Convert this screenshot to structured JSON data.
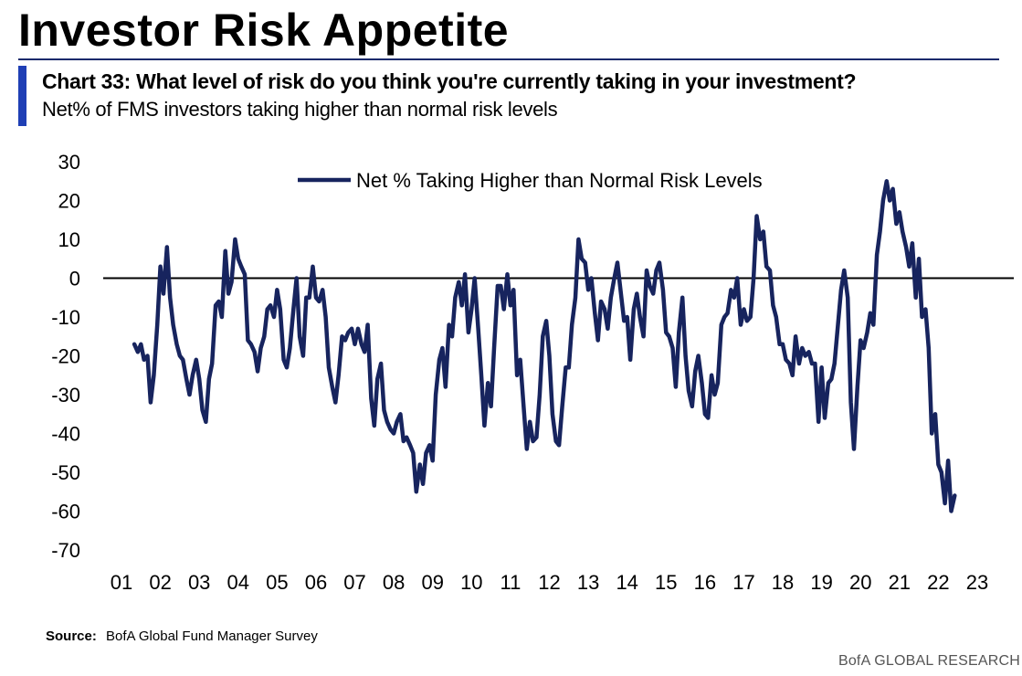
{
  "header": {
    "title": "Investor Risk Appetite",
    "chart_heading": "Chart 33: What level of risk do you think you're currently taking in your investment?",
    "chart_subheading": "Net% of FMS investors taking higher than normal risk levels"
  },
  "footer": {
    "source_label": "Source:",
    "source_text": "BofA Global Fund Manager Survey",
    "brand": "BofA GLOBAL RESEARCH"
  },
  "colors": {
    "series": "#17245e",
    "accent": "#1f3fb5",
    "zero_line": "#000000"
  },
  "chart_data": {
    "type": "line",
    "title": "Chart 33: What level of risk do you think you're currently taking in your investment?",
    "subtitle": "Net% of FMS investors taking higher than normal risk levels",
    "xlabel": "",
    "ylabel": "",
    "ylim": [
      -70,
      30
    ],
    "xlim": [
      2001,
      2023
    ],
    "yticks": [
      30,
      20,
      10,
      0,
      -10,
      -20,
      -30,
      -40,
      -50,
      -60,
      -70
    ],
    "xtick_values": [
      2001,
      2002,
      2003,
      2004,
      2005,
      2006,
      2007,
      2008,
      2009,
      2010,
      2011,
      2012,
      2013,
      2014,
      2015,
      2016,
      2017,
      2018,
      2019,
      2020,
      2021,
      2022,
      2023
    ],
    "xtick_labels": [
      "01",
      "02",
      "03",
      "04",
      "05",
      "06",
      "07",
      "08",
      "09",
      "10",
      "11",
      "12",
      "13",
      "14",
      "15",
      "16",
      "17",
      "18",
      "19",
      "20",
      "21",
      "22",
      "23"
    ],
    "grid": false,
    "legend_position": "top-center",
    "series": [
      {
        "name": "Net % Taking Higher than Normal Risk Levels",
        "points": [
          [
            2001.33,
            -17
          ],
          [
            2001.42,
            -19
          ],
          [
            2001.5,
            -17
          ],
          [
            2001.58,
            -21
          ],
          [
            2001.67,
            -20
          ],
          [
            2001.75,
            -32
          ],
          [
            2001.83,
            -25
          ],
          [
            2001.92,
            -12
          ],
          [
            2002.0,
            3
          ],
          [
            2002.08,
            -4
          ],
          [
            2002.17,
            8
          ],
          [
            2002.25,
            -5
          ],
          [
            2002.33,
            -12
          ],
          [
            2002.42,
            -17
          ],
          [
            2002.5,
            -20
          ],
          [
            2002.58,
            -21
          ],
          [
            2002.67,
            -26
          ],
          [
            2002.75,
            -30
          ],
          [
            2002.83,
            -25
          ],
          [
            2002.92,
            -21
          ],
          [
            2003.0,
            -26
          ],
          [
            2003.08,
            -34
          ],
          [
            2003.17,
            -37
          ],
          [
            2003.25,
            -26
          ],
          [
            2003.33,
            -22
          ],
          [
            2003.42,
            -7
          ],
          [
            2003.5,
            -6
          ],
          [
            2003.58,
            -10
          ],
          [
            2003.67,
            7
          ],
          [
            2003.75,
            -4
          ],
          [
            2003.83,
            -1
          ],
          [
            2003.92,
            10
          ],
          [
            2004.0,
            5
          ],
          [
            2004.08,
            3
          ],
          [
            2004.17,
            1
          ],
          [
            2004.25,
            -16
          ],
          [
            2004.33,
            -17
          ],
          [
            2004.42,
            -19
          ],
          [
            2004.5,
            -24
          ],
          [
            2004.58,
            -18
          ],
          [
            2004.67,
            -15
          ],
          [
            2004.75,
            -8
          ],
          [
            2004.83,
            -7
          ],
          [
            2004.92,
            -10
          ],
          [
            2005.0,
            -3
          ],
          [
            2005.08,
            -8
          ],
          [
            2005.17,
            -21
          ],
          [
            2005.25,
            -23
          ],
          [
            2005.33,
            -18
          ],
          [
            2005.42,
            -8
          ],
          [
            2005.5,
            0
          ],
          [
            2005.58,
            -15
          ],
          [
            2005.67,
            -20
          ],
          [
            2005.75,
            -5
          ],
          [
            2005.83,
            -5
          ],
          [
            2005.92,
            3
          ],
          [
            2006.0,
            -5
          ],
          [
            2006.08,
            -6
          ],
          [
            2006.17,
            -3
          ],
          [
            2006.25,
            -10
          ],
          [
            2006.33,
            -23
          ],
          [
            2006.42,
            -28
          ],
          [
            2006.5,
            -32
          ],
          [
            2006.58,
            -25
          ],
          [
            2006.67,
            -15
          ],
          [
            2006.75,
            -16
          ],
          [
            2006.83,
            -14
          ],
          [
            2006.92,
            -13
          ],
          [
            2007.0,
            -17
          ],
          [
            2007.08,
            -13
          ],
          [
            2007.17,
            -17
          ],
          [
            2007.25,
            -19
          ],
          [
            2007.33,
            -12
          ],
          [
            2007.42,
            -31
          ],
          [
            2007.5,
            -38
          ],
          [
            2007.58,
            -26
          ],
          [
            2007.67,
            -22
          ],
          [
            2007.75,
            -34
          ],
          [
            2007.83,
            -37
          ],
          [
            2007.92,
            -39
          ],
          [
            2008.0,
            -40
          ],
          [
            2008.08,
            -37
          ],
          [
            2008.17,
            -35
          ],
          [
            2008.25,
            -42
          ],
          [
            2008.33,
            -41
          ],
          [
            2008.42,
            -43
          ],
          [
            2008.5,
            -45
          ],
          [
            2008.58,
            -55
          ],
          [
            2008.67,
            -48
          ],
          [
            2008.75,
            -53
          ],
          [
            2008.83,
            -45
          ],
          [
            2008.92,
            -43
          ],
          [
            2009.0,
            -47
          ],
          [
            2009.08,
            -30
          ],
          [
            2009.17,
            -21
          ],
          [
            2009.25,
            -18
          ],
          [
            2009.33,
            -28
          ],
          [
            2009.42,
            -12
          ],
          [
            2009.5,
            -15
          ],
          [
            2009.58,
            -5
          ],
          [
            2009.67,
            -1
          ],
          [
            2009.75,
            -7
          ],
          [
            2009.83,
            1
          ],
          [
            2009.92,
            -14
          ],
          [
            2010.0,
            -8
          ],
          [
            2010.08,
            0
          ],
          [
            2010.17,
            -13
          ],
          [
            2010.25,
            -25
          ],
          [
            2010.33,
            -38
          ],
          [
            2010.42,
            -27
          ],
          [
            2010.5,
            -33
          ],
          [
            2010.58,
            -18
          ],
          [
            2010.67,
            -2
          ],
          [
            2010.75,
            -2
          ],
          [
            2010.83,
            -8
          ],
          [
            2010.92,
            1
          ],
          [
            2011.0,
            -7
          ],
          [
            2011.08,
            -3
          ],
          [
            2011.17,
            -25
          ],
          [
            2011.25,
            -21
          ],
          [
            2011.33,
            -32
          ],
          [
            2011.42,
            -44
          ],
          [
            2011.5,
            -37
          ],
          [
            2011.58,
            -42
          ],
          [
            2011.67,
            -41
          ],
          [
            2011.75,
            -30
          ],
          [
            2011.83,
            -15
          ],
          [
            2011.92,
            -11
          ],
          [
            2012.0,
            -20
          ],
          [
            2012.08,
            -35
          ],
          [
            2012.17,
            -42
          ],
          [
            2012.25,
            -43
          ],
          [
            2012.33,
            -33
          ],
          [
            2012.42,
            -23
          ],
          [
            2012.5,
            -23
          ],
          [
            2012.58,
            -12
          ],
          [
            2012.67,
            -5
          ],
          [
            2012.75,
            10
          ],
          [
            2012.83,
            5
          ],
          [
            2012.92,
            4
          ],
          [
            2013.0,
            -3
          ],
          [
            2013.08,
            0
          ],
          [
            2013.17,
            -9
          ],
          [
            2013.25,
            -16
          ],
          [
            2013.33,
            -6
          ],
          [
            2013.42,
            -8
          ],
          [
            2013.5,
            -13
          ],
          [
            2013.58,
            -5
          ],
          [
            2013.67,
            0
          ],
          [
            2013.75,
            4
          ],
          [
            2013.83,
            -3
          ],
          [
            2013.92,
            -11
          ],
          [
            2014.0,
            -10
          ],
          [
            2014.08,
            -21
          ],
          [
            2014.17,
            -8
          ],
          [
            2014.25,
            -4
          ],
          [
            2014.33,
            -10
          ],
          [
            2014.42,
            -15
          ],
          [
            2014.5,
            2
          ],
          [
            2014.58,
            -2
          ],
          [
            2014.67,
            -4
          ],
          [
            2014.75,
            2
          ],
          [
            2014.83,
            4
          ],
          [
            2014.92,
            -3
          ],
          [
            2015.0,
            -14
          ],
          [
            2015.08,
            -15
          ],
          [
            2015.17,
            -18
          ],
          [
            2015.25,
            -28
          ],
          [
            2015.33,
            -14
          ],
          [
            2015.42,
            -5
          ],
          [
            2015.5,
            -20
          ],
          [
            2015.58,
            -29
          ],
          [
            2015.67,
            -33
          ],
          [
            2015.75,
            -24
          ],
          [
            2015.83,
            -20
          ],
          [
            2015.92,
            -27
          ],
          [
            2016.0,
            -35
          ],
          [
            2016.08,
            -36
          ],
          [
            2016.17,
            -25
          ],
          [
            2016.25,
            -30
          ],
          [
            2016.33,
            -27
          ],
          [
            2016.42,
            -12
          ],
          [
            2016.5,
            -10
          ],
          [
            2016.58,
            -9
          ],
          [
            2016.67,
            -3
          ],
          [
            2016.75,
            -5
          ],
          [
            2016.83,
            0
          ],
          [
            2016.92,
            -12
          ],
          [
            2017.0,
            -8
          ],
          [
            2017.08,
            -11
          ],
          [
            2017.17,
            -10
          ],
          [
            2017.25,
            0
          ],
          [
            2017.33,
            16
          ],
          [
            2017.42,
            10
          ],
          [
            2017.5,
            12
          ],
          [
            2017.58,
            3
          ],
          [
            2017.67,
            2
          ],
          [
            2017.75,
            -7
          ],
          [
            2017.83,
            -10
          ],
          [
            2017.92,
            -17
          ],
          [
            2018.0,
            -17
          ],
          [
            2018.08,
            -21
          ],
          [
            2018.17,
            -22
          ],
          [
            2018.25,
            -25
          ],
          [
            2018.33,
            -15
          ],
          [
            2018.42,
            -22
          ],
          [
            2018.5,
            -18
          ],
          [
            2018.58,
            -20
          ],
          [
            2018.67,
            -19
          ],
          [
            2018.75,
            -22
          ],
          [
            2018.83,
            -22
          ],
          [
            2018.92,
            -37
          ],
          [
            2019.0,
            -23
          ],
          [
            2019.08,
            -36
          ],
          [
            2019.17,
            -27
          ],
          [
            2019.25,
            -26
          ],
          [
            2019.33,
            -22
          ],
          [
            2019.42,
            -12
          ],
          [
            2019.5,
            -3
          ],
          [
            2019.58,
            2
          ],
          [
            2019.67,
            -5
          ],
          [
            2019.75,
            -32
          ],
          [
            2019.83,
            -44
          ],
          [
            2019.92,
            -28
          ],
          [
            2020.0,
            -16
          ],
          [
            2020.08,
            -18
          ],
          [
            2020.17,
            -14
          ],
          [
            2020.25,
            -9
          ],
          [
            2020.33,
            -12
          ],
          [
            2020.42,
            6
          ],
          [
            2020.5,
            12
          ],
          [
            2020.58,
            20
          ],
          [
            2020.67,
            25
          ],
          [
            2020.75,
            20
          ],
          [
            2020.83,
            23
          ],
          [
            2020.92,
            14
          ],
          [
            2021.0,
            17
          ],
          [
            2021.08,
            12
          ],
          [
            2021.17,
            8
          ],
          [
            2021.25,
            3
          ],
          [
            2021.33,
            9
          ],
          [
            2021.42,
            -5
          ],
          [
            2021.5,
            5
          ],
          [
            2021.58,
            -10
          ],
          [
            2021.67,
            -8
          ],
          [
            2021.75,
            -18
          ],
          [
            2021.83,
            -40
          ],
          [
            2021.92,
            -35
          ],
          [
            2022.0,
            -48
          ],
          [
            2022.08,
            -50
          ],
          [
            2022.17,
            -58
          ],
          [
            2022.25,
            -47
          ],
          [
            2022.33,
            -60
          ],
          [
            2022.42,
            -56
          ]
        ]
      }
    ]
  }
}
